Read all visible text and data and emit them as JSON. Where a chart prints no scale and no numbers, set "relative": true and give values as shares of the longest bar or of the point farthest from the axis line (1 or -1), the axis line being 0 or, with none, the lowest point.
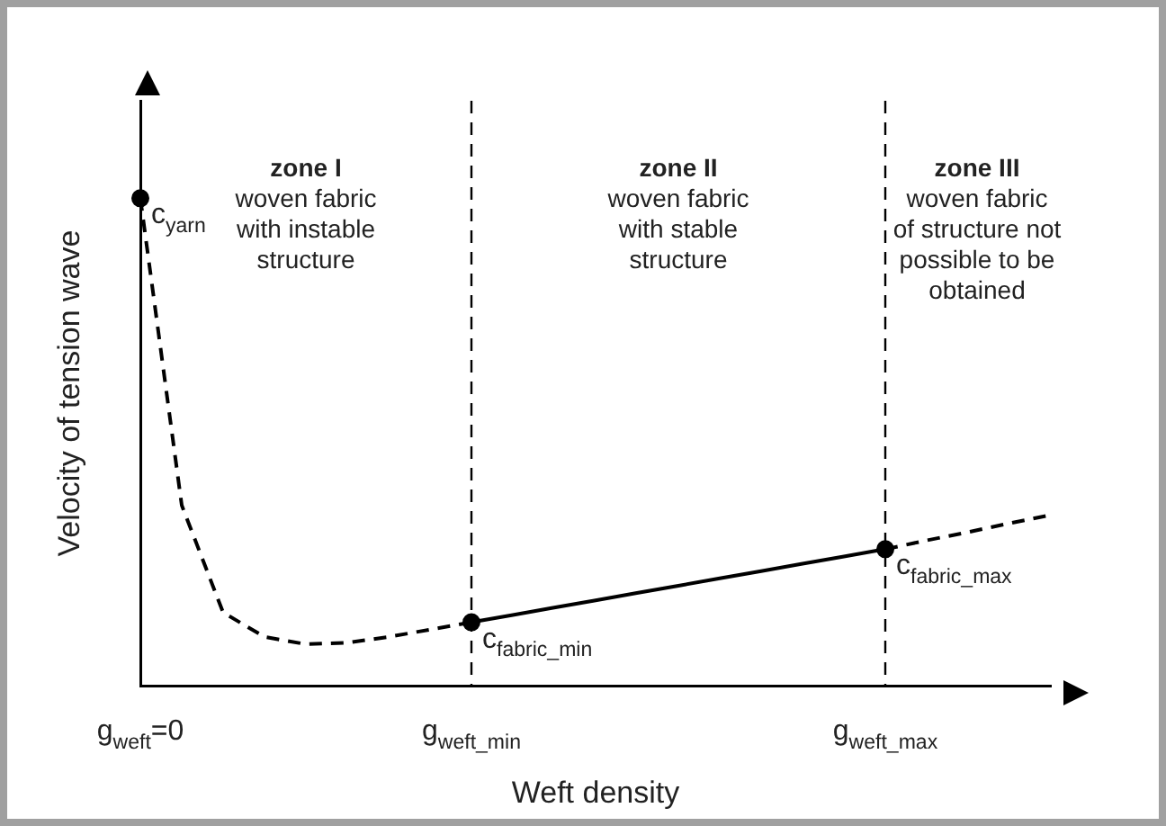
{
  "chart_data": {
    "type": "line",
    "relative": true,
    "xlabel": "Weft density",
    "ylabel": "Velocity of tension wave",
    "categories": [
      "g$_{weft}$=0",
      null,
      null,
      null,
      null,
      null,
      null,
      null,
      "g$_{weft_min}$",
      null,
      null,
      null,
      null,
      null,
      null,
      null,
      null,
      null,
      "g$_{weft_max}$",
      null,
      null,
      null,
      null
    ],
    "series": [
      {
        "type": "line",
        "color": "#000000",
        "line_style": "dashed",
        "values": [
          1.0,
          0.37,
          0.15,
          0.1,
          0.085,
          0.088,
          0.1,
          0.115,
          0.13,
          null,
          null,
          null,
          null,
          null,
          null,
          null,
          null,
          null,
          null,
          null,
          null,
          null,
          null
        ]
      },
      {
        "type": "line",
        "color": "#000000",
        "line_style": "solid",
        "values": [
          null,
          null,
          null,
          null,
          null,
          null,
          null,
          null,
          0.13,
          0.145,
          0.16,
          0.175,
          0.19,
          0.205,
          0.22,
          0.235,
          0.25,
          0.265,
          0.28,
          null,
          null,
          null,
          null
        ]
      },
      {
        "type": "line",
        "color": "#000000",
        "line_style": "dashed",
        "values": [
          null,
          null,
          null,
          null,
          null,
          null,
          null,
          null,
          null,
          null,
          null,
          null,
          null,
          null,
          null,
          null,
          null,
          null,
          0.28,
          0.298,
          0.315,
          0.333,
          0.35
        ]
      },
      {
        "type": "scatter",
        "color": "#000000",
        "marker": "circle",
        "values": [
          1.0,
          null,
          null,
          null,
          null,
          null,
          null,
          null,
          0.13,
          null,
          null,
          null,
          null,
          null,
          null,
          null,
          null,
          null,
          0.28,
          null,
          null,
          null,
          null
        ]
      }
    ],
    "ref_lines": [
      {
        "axis": "x",
        "value": "g$_{weft_min}$",
        "color": "#000000",
        "line_style": "dashed"
      },
      {
        "axis": "x",
        "value": "g$_{weft_max}$",
        "color": "#000000",
        "line_style": "dashed"
      }
    ],
    "annotations": [
      {
        "text": "c$_{yarn}$",
        "x": "g$_{weft}$=0",
        "y": 1.0
      },
      {
        "text": "c$_{fabric_min}$",
        "x": "g$_{weft_min}$",
        "y": 0.13
      },
      {
        "text": "c$_{fabric_max}$",
        "x": "g$_{weft_max}$",
        "y": 0.28
      },
      "zone I\nwoven fabric\nwith instable\nstructure",
      "zone II\nwoven fabric\nwith stable\nstructure",
      "zone III\nwoven fabric\nof structure not\npossible to be\nobtained"
    ],
    "legend": false,
    "grid": false,
    "tick_labels": "x"
  }
}
